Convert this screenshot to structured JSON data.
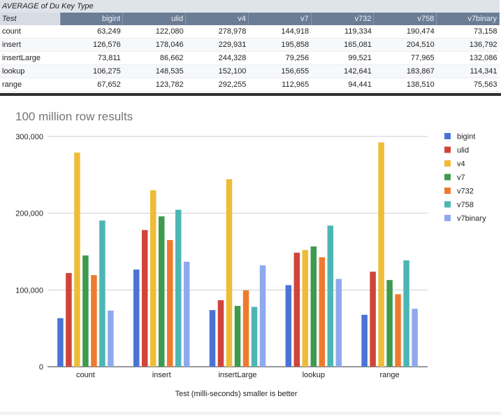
{
  "table": {
    "title": "AVERAGE of Du Key Type",
    "row_header": "Test",
    "columns": [
      "bigint",
      "ulid",
      "v4",
      "v7",
      "v732",
      "v758",
      "v7binary"
    ],
    "rows": [
      {
        "label": "count",
        "cells": [
          "63,249",
          "122,080",
          "278,978",
          "144,918",
          "119,334",
          "190,474",
          "73,158"
        ]
      },
      {
        "label": "insert",
        "cells": [
          "126,576",
          "178,046",
          "229,931",
          "195,858",
          "165,081",
          "204,510",
          "136,792"
        ]
      },
      {
        "label": "insertLarge",
        "cells": [
          "73,811",
          "86,662",
          "244,328",
          "79,256",
          "99,521",
          "77,965",
          "132,086"
        ]
      },
      {
        "label": "lookup",
        "cells": [
          "106,275",
          "148,535",
          "152,100",
          "156,655",
          "142,641",
          "183,867",
          "114,341"
        ]
      },
      {
        "label": "range",
        "cells": [
          "67,652",
          "123,782",
          "292,255",
          "112,965",
          "94,441",
          "138,510",
          "75,563"
        ]
      }
    ]
  },
  "chart_data": {
    "type": "bar",
    "title": "100 million row results",
    "xlabel": "Test (milli-seconds) smaller is better",
    "ylabel": "",
    "ylim": [
      0,
      300000
    ],
    "yticks": [
      0,
      100000,
      200000,
      300000
    ],
    "ytick_labels": [
      "0",
      "100,000",
      "200,000",
      "300,000"
    ],
    "grid": true,
    "legend_position": "right",
    "categories": [
      "count",
      "insert",
      "insertLarge",
      "lookup",
      "range"
    ],
    "series": [
      {
        "name": "bigint",
        "color": "#4a73d5",
        "values": [
          63249,
          126576,
          73811,
          106275,
          67652
        ]
      },
      {
        "name": "ulid",
        "color": "#d0443a",
        "values": [
          122080,
          178046,
          86662,
          148535,
          123782
        ]
      },
      {
        "name": "v4",
        "color": "#eebc37",
        "values": [
          278978,
          229931,
          244328,
          152100,
          292255
        ]
      },
      {
        "name": "v7",
        "color": "#3e9a4f",
        "values": [
          144918,
          195858,
          79256,
          156655,
          112965
        ]
      },
      {
        "name": "v732",
        "color": "#ef7a2e",
        "values": [
          119334,
          165081,
          99521,
          142641,
          94441
        ]
      },
      {
        "name": "v758",
        "color": "#4db6b4",
        "values": [
          190474,
          204510,
          77965,
          183867,
          138510
        ]
      },
      {
        "name": "v7binary",
        "color": "#8fa9ee",
        "values": [
          73158,
          136792,
          132086,
          114341,
          75563
        ]
      }
    ]
  }
}
